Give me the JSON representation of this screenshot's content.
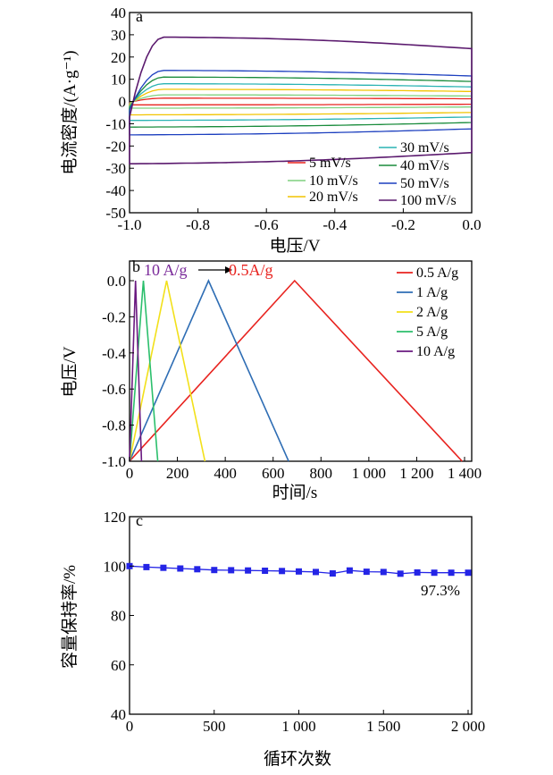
{
  "chart_data": [
    {
      "panel": "a",
      "type": "line",
      "xlabel": "电压/V",
      "ylabel": "电流密度/(A·g⁻¹)",
      "xlim": [
        -1.0,
        0.0
      ],
      "ylim": [
        -50,
        40
      ],
      "xticks": [
        "-1.0",
        "-0.8",
        "-0.6",
        "-0.4",
        "-0.2",
        "0.0"
      ],
      "yticks": [
        "40",
        "30",
        "20",
        "10",
        "0",
        "-10",
        "-20",
        "-30",
        "-40",
        "-50"
      ],
      "legend_position": "bottom-right",
      "series": [
        {
          "name": "5 mV/s",
          "color": "#e8231f",
          "upper": 1.5,
          "lower": -1.5
        },
        {
          "name": "10 mV/s",
          "color": "#7fd07f",
          "upper": 3,
          "lower": -3
        },
        {
          "name": "20 mV/s",
          "color": "#f2c400",
          "upper": 5.5,
          "lower": -6
        },
        {
          "name": "30 mV/s",
          "color": "#2ab3b3",
          "upper": 8,
          "lower": -8.5
        },
        {
          "name": "40 mV/s",
          "color": "#1a8c3c",
          "upper": 11,
          "lower": -11.5
        },
        {
          "name": "50 mV/s",
          "color": "#1c3fbf",
          "upper": 14,
          "lower": -15
        },
        {
          "name": "100 mV/s",
          "color": "#5b1a6e",
          "upper": 29,
          "lower": -28
        }
      ]
    },
    {
      "panel": "b",
      "type": "line",
      "xlabel": "时间/s",
      "ylabel": "电压/V",
      "xlim": [
        0,
        1400
      ],
      "ylim": [
        -1.0,
        0.0
      ],
      "xticks": [
        "0",
        "200",
        "400",
        "600",
        "800",
        "1 000",
        "1 200",
        "1 400"
      ],
      "yticks": [
        "0.0",
        "-0.2",
        "-0.4",
        "-0.6",
        "-0.8",
        "-1.0"
      ],
      "annotation_left": "10 A/g",
      "annotation_right": "0.5A/g",
      "legend_position": "top-right",
      "series": [
        {
          "name": "0.5 A/g",
          "color": "#e8231f",
          "x": [
            0,
            690,
            1390
          ],
          "y": [
            -1.0,
            0.0,
            -1.0
          ]
        },
        {
          "name": "1 A/g",
          "color": "#2e6db4",
          "x": [
            0,
            330,
            665
          ],
          "y": [
            -1.0,
            0.0,
            -1.0
          ]
        },
        {
          "name": "2 A/g",
          "color": "#f2e01a",
          "x": [
            0,
            155,
            315
          ],
          "y": [
            -1.0,
            0.0,
            -1.0
          ]
        },
        {
          "name": "5 A/g",
          "color": "#2bbf6c",
          "x": [
            0,
            58,
            118
          ],
          "y": [
            -1.0,
            0.0,
            -1.0
          ]
        },
        {
          "name": "10 A/g",
          "color": "#6a1a80",
          "x": [
            0,
            25,
            50
          ],
          "y": [
            -1.0,
            0.0,
            -1.0
          ]
        }
      ]
    },
    {
      "panel": "c",
      "type": "line",
      "xlabel": "循环次数",
      "ylabel": "容量保持率/%",
      "xlim": [
        0,
        2000
      ],
      "ylim": [
        40,
        120
      ],
      "xticks": [
        "0",
        "500",
        "1 000",
        "1 500",
        "2 000"
      ],
      "yticks": [
        "120",
        "100",
        "80",
        "60",
        "40"
      ],
      "annotation": "97.3%",
      "series": [
        {
          "color": "#2424e6",
          "x": [
            0,
            100,
            200,
            300,
            400,
            500,
            600,
            700,
            800,
            900,
            1000,
            1100,
            1200,
            1300,
            1400,
            1500,
            1600,
            1700,
            1800,
            1900,
            2000
          ],
          "y": [
            100,
            99.6,
            99.3,
            99.0,
            98.7,
            98.4,
            98.3,
            98.2,
            98.1,
            98.0,
            97.8,
            97.6,
            97.0,
            98.2,
            97.7,
            97.6,
            96.9,
            97.4,
            97.3,
            97.3,
            97.3
          ]
        }
      ]
    }
  ]
}
